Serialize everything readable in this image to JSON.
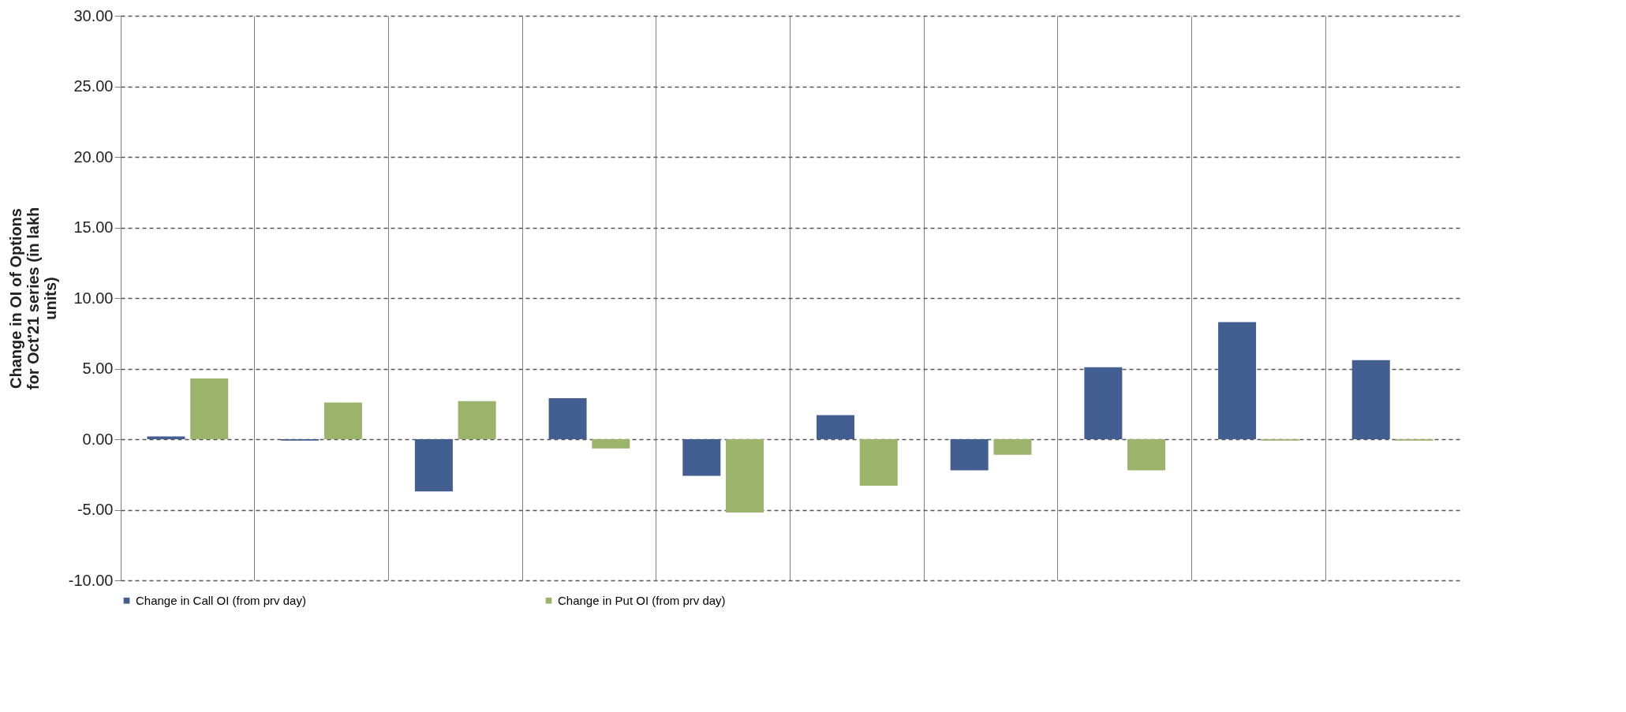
{
  "chart_data": {
    "type": "bar",
    "ylabel": "Change in OI of Options for Oct'21 series (in lakh units)",
    "categories": [
      null,
      null,
      null,
      null,
      null,
      null,
      null,
      null,
      null,
      null
    ],
    "series": [
      {
        "name": "Change in Call OI (from prv day)",
        "color": "#435e91",
        "values": [
          0.2,
          -0.1,
          -3.7,
          2.9,
          -2.6,
          1.7,
          -2.2,
          5.1,
          8.3,
          5.6
        ]
      },
      {
        "name": "Change in Put OI (from prv day)",
        "color": "#9bb36b",
        "values": [
          4.3,
          2.6,
          2.7,
          -0.65,
          -5.2,
          -3.3,
          -1.1,
          -2.2,
          -0.1,
          -0.1
        ]
      }
    ],
    "ylim": [
      -10,
      30
    ],
    "yticks": [
      {
        "value": -10,
        "label": "-10.00"
      },
      {
        "value": -5,
        "label": "-5.00"
      },
      {
        "value": 0,
        "label": "0.00"
      },
      {
        "value": 5,
        "label": "5.00"
      },
      {
        "value": 10,
        "label": "10.00"
      },
      {
        "value": 15,
        "label": "15.00"
      },
      {
        "value": 20,
        "label": "20.00"
      },
      {
        "value": 25,
        "label": "25.00"
      },
      {
        "value": 30,
        "label": "30.00"
      }
    ],
    "grid": true,
    "legend": "bottom",
    "tick_labels": "y"
  }
}
